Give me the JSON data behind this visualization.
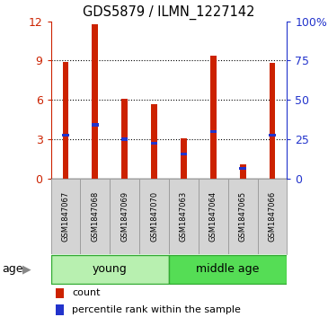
{
  "title": "GDS5879 / ILMN_1227142",
  "samples": [
    "GSM1847067",
    "GSM1847068",
    "GSM1847069",
    "GSM1847070",
    "GSM1847063",
    "GSM1847064",
    "GSM1847065",
    "GSM1847066"
  ],
  "counts": [
    8.9,
    11.8,
    6.1,
    5.7,
    3.1,
    9.4,
    1.1,
    8.8
  ],
  "percentiles": [
    3.3,
    4.1,
    3.0,
    2.7,
    1.9,
    3.6,
    0.8,
    3.3
  ],
  "groups": [
    {
      "label": "young",
      "start": 0,
      "end": 4,
      "color": "#b8f0b0"
    },
    {
      "label": "middle age",
      "start": 4,
      "end": 8,
      "color": "#55dd55"
    }
  ],
  "ylim_left": [
    0,
    12
  ],
  "ylim_right": [
    0,
    100
  ],
  "yticks_left": [
    0,
    3,
    6,
    9,
    12
  ],
  "yticks_right": [
    0,
    25,
    50,
    75,
    100
  ],
  "yticklabels_right": [
    "0",
    "25",
    "50",
    "75",
    "100%"
  ],
  "bar_color": "#cc2200",
  "blue_color": "#2233cc",
  "bar_width": 0.6,
  "age_label": "age",
  "legend_count": "count",
  "legend_pct": "percentile rank within the sample",
  "bg_color": "#ffffff",
  "tick_color_left": "#cc2200",
  "tick_color_right": "#2233cc",
  "sample_box_color": "#c8c8c8",
  "group_border_color": "#33aa33"
}
